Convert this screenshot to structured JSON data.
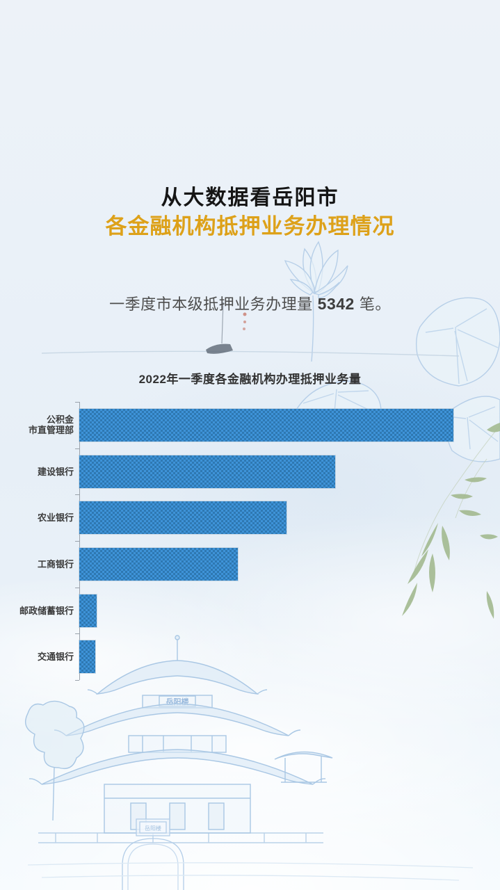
{
  "page": {
    "title_line1": "从大数据看岳阳市",
    "title_line2": "各金融机构抵押业务办理情况",
    "summary": {
      "prefix": "一季度市本级抵押业务办理量",
      "count": "5342",
      "suffix": "笔。"
    }
  },
  "colors": {
    "title_black": "#151515",
    "title_gold": "#dda119",
    "body_gray": "#4d4d4d",
    "bar_light": "#3e93d8",
    "bar_dark": "#2e78b2",
    "axis_gray": "#9aa2ab"
  },
  "chart_data": {
    "type": "bar",
    "orientation": "horizontal",
    "title": "2022年一季度各金融机构办理抵押业务量",
    "categories": [
      "公积金\n市直管理部",
      "建设银行",
      "农业银行",
      "工商银行",
      "邮政储蓄银行",
      "交通银行"
    ],
    "values": [
      1942,
      1328,
      1076,
      823,
      90,
      83
    ],
    "value_labels_shown": false,
    "values_estimated": true,
    "total_reference": 5342,
    "xlim": [
      0,
      2000
    ],
    "grid": false,
    "legend": false
  },
  "decor": {
    "tower_plaque": "岳阳楼",
    "gate_plaque": "岳阳楼"
  }
}
